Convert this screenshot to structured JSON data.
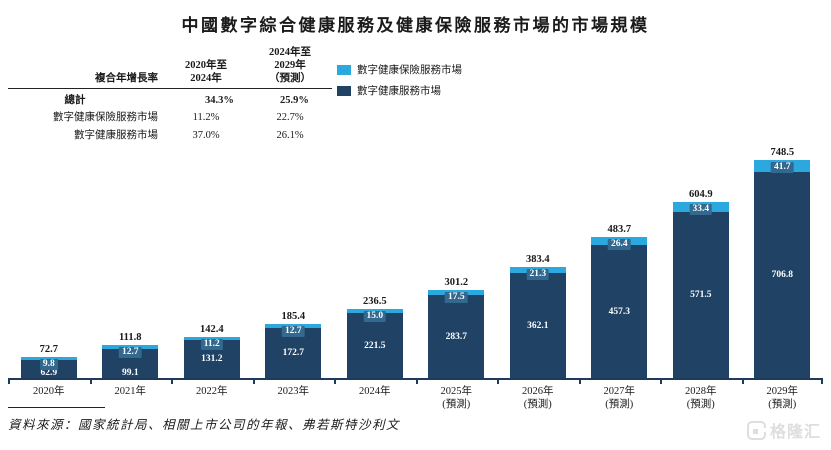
{
  "title": "中國數字綜合健康服務及健康保險服務市場的市場規模",
  "cagr_table": {
    "row_header": "複合年增長率",
    "col_headers": [
      "2020年至\n2024年",
      "2024年至\n2029年\n（預測）"
    ],
    "rows": [
      {
        "label": "總計",
        "values": [
          "34.3%",
          "25.9%"
        ],
        "bold": true
      },
      {
        "label": "數字健康保險服務市場",
        "values": [
          "11.2%",
          "22.7%"
        ],
        "bold": false
      },
      {
        "label": "數字健康服務市場",
        "values": [
          "37.0%",
          "26.1%"
        ],
        "bold": false
      }
    ]
  },
  "legend": {
    "items": [
      {
        "label": "數字健康保險服務市場",
        "color": "#2BA9DF"
      },
      {
        "label": "數字健康服務市場",
        "color": "#1F4265"
      }
    ]
  },
  "chart_data": {
    "type": "bar",
    "stacked": true,
    "grid": false,
    "legend_position": "top-left",
    "categories": [
      "2020年",
      "2021年",
      "2022年",
      "2023年",
      "2024年",
      "2025年",
      "2026年",
      "2027年",
      "2028年",
      "2029年"
    ],
    "category_notes": [
      "",
      "",
      "",
      "",
      "",
      "(預測)",
      "(預測)",
      "(預測)",
      "(預測)",
      "(預測)"
    ],
    "series": [
      {
        "name": "數字健康保險服務市場",
        "color": "#2BA9DF",
        "values": [
          9.8,
          12.7,
          11.2,
          12.7,
          15.0,
          17.5,
          21.3,
          26.4,
          33.4,
          41.7
        ],
        "value_labels": [
          "9.8",
          "12.7",
          "11.2",
          "12.7",
          "15.0",
          "17.5",
          "21.3",
          "26.4",
          "33.4",
          "41.7"
        ]
      },
      {
        "name": "數字健康服務市場",
        "color": "#1F4265",
        "values": [
          62.9,
          99.1,
          131.2,
          172.7,
          221.5,
          283.7,
          362.1,
          457.3,
          571.5,
          706.8
        ],
        "value_labels": [
          "62.9",
          "99.1",
          "131.2",
          "172.7",
          "221.5",
          "283.7",
          "362.1",
          "457.3",
          "571.5",
          "706.8"
        ]
      }
    ],
    "totals": [
      72.7,
      111.8,
      142.4,
      185.4,
      236.5,
      301.2,
      383.4,
      483.7,
      604.9,
      748.5
    ],
    "total_labels": [
      "72.7",
      "111.8",
      "142.4",
      "185.4",
      "236.5",
      "301.2",
      "383.4",
      "483.7",
      "604.9",
      "748.5"
    ],
    "ylim": [
      0,
      770
    ]
  },
  "source": "資料來源：國家統計局、相關上市公司的年報、弗若斯特沙利文",
  "watermark": {
    "text": "格隆汇"
  }
}
